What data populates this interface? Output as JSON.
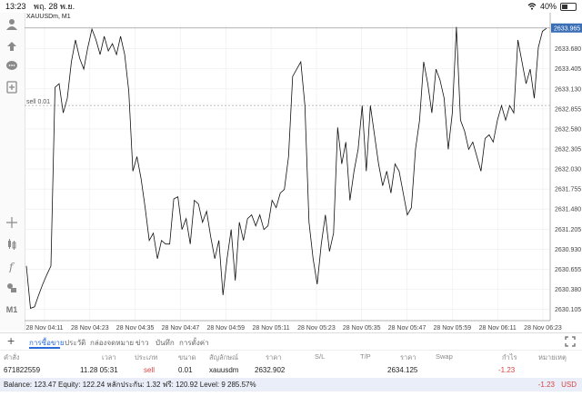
{
  "status": {
    "time": "13:23",
    "date": "พฤ. 28 พ.ย.",
    "battery": "40%",
    "battery_level": 0.4
  },
  "chart": {
    "symbol": "XAUUSDm, M1",
    "sell_line_label": "sell 0.01",
    "current_price": "2633.965",
    "colors": {
      "line": "#111111",
      "price_tag": "#3a6fb5",
      "grid": "#ececec",
      "sell_line": "#aaaaaa"
    }
  },
  "chart_data": {
    "type": "line",
    "x_ticks": [
      "28 Nov 04:11",
      "28 Nov 04:23",
      "28 Nov 04:35",
      "28 Nov 04:47",
      "28 Nov 04:59",
      "28 Nov 05:11",
      "28 Nov 05:23",
      "28 Nov 05:35",
      "28 Nov 05:47",
      "28 Nov 05:59",
      "28 Nov 06:11",
      "28 Nov 06:23"
    ],
    "y_ticks": [
      "2633.680",
      "2633.405",
      "2633.130",
      "2632.855",
      "2632.580",
      "2632.305",
      "2632.030",
      "2631.755",
      "2631.480",
      "2631.205",
      "2630.930",
      "2630.655",
      "2630.380",
      "2630.105"
    ],
    "ylim": [
      2629.95,
      2634.0
    ],
    "current_price": 2633.965,
    "sell_level": 2632.902,
    "values": [
      2630.7,
      2630.12,
      2630.14,
      2630.3,
      2630.45,
      2630.58,
      2630.7,
      2633.15,
      2633.2,
      2632.8,
      2633.0,
      2633.5,
      2633.8,
      2633.55,
      2633.4,
      2633.7,
      2633.95,
      2633.8,
      2633.6,
      2633.85,
      2633.65,
      2633.75,
      2633.6,
      2633.85,
      2633.6,
      2633.1,
      2632.0,
      2632.2,
      2631.9,
      2631.5,
      2631.05,
      2631.15,
      2630.8,
      2631.05,
      2631.0,
      2631.0,
      2631.62,
      2631.65,
      2631.2,
      2631.35,
      2631.0,
      2631.6,
      2631.55,
      2631.3,
      2631.45,
      2631.1,
      2630.8,
      2631.05,
      2630.3,
      2630.8,
      2631.2,
      2630.5,
      2631.3,
      2631.05,
      2631.35,
      2631.4,
      2631.25,
      2631.4,
      2631.2,
      2631.25,
      2631.6,
      2631.5,
      2631.7,
      2631.75,
      2632.2,
      2633.3,
      2633.4,
      2633.5,
      2632.9,
      2631.3,
      2630.8,
      2630.45,
      2631.0,
      2631.4,
      2630.9,
      2631.15,
      2632.6,
      2632.1,
      2632.4,
      2631.6,
      2632.0,
      2632.3,
      2632.9,
      2632.0,
      2632.9,
      2632.5,
      2632.1,
      2631.8,
      2632.0,
      2631.7,
      2632.1,
      2632.0,
      2631.7,
      2631.4,
      2631.5,
      2632.3,
      2632.7,
      2633.5,
      2633.2,
      2632.8,
      2633.4,
      2633.25,
      2633.0,
      2632.3,
      2632.8,
      2633.98,
      2632.7,
      2632.55,
      2632.3,
      2632.4,
      2632.2,
      2632.0,
      2632.45,
      2632.5,
      2632.4,
      2632.7,
      2632.9,
      2632.7,
      2632.9,
      2632.8,
      2633.8,
      2633.5,
      2633.2,
      2633.4,
      2633.0,
      2633.7,
      2633.92,
      2633.96
    ]
  },
  "toolbar": {
    "icons": [
      "profile-icon",
      "objects-icon",
      "chat-icon",
      "add-chart-icon",
      "crosshair-icon",
      "indicators-icon",
      "function-icon",
      "shapes-icon"
    ],
    "timeframe": "M1"
  },
  "tabs": [
    "การซื้อขาย",
    "ประวัติ",
    "กล่องจดหมาย",
    "ข่าว",
    "บันทึก",
    "การตั้งค่า"
  ],
  "table": {
    "headers": [
      "คำสั่ง",
      "เวลา",
      "ประเภท",
      "ขนาด",
      "สัญลักษณ์",
      "ราคา",
      "S/L",
      "T/P",
      "ราคา",
      "Swap",
      "กำไร",
      "หมายเหตุ"
    ],
    "rows": [
      [
        "671822559",
        "11.28 05:31",
        "sell",
        "0.01",
        "xauusdm",
        "2632.902",
        "",
        "",
        "2634.125",
        "",
        "-1.23",
        ""
      ]
    ]
  },
  "balance": {
    "text": "Balance: 123.47 Equity: 122.24 หลักประกัน: 1.32 ฟรี: 120.92 Level: 9 285.57%",
    "profit": "-1.23",
    "currency": "USD"
  }
}
